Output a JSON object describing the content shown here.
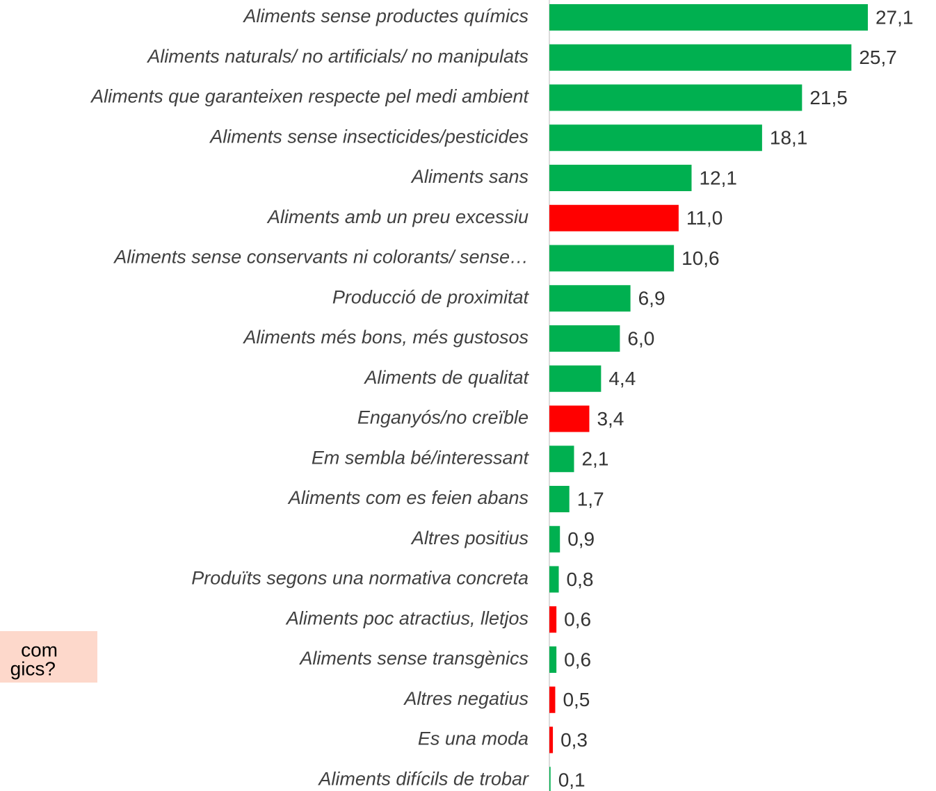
{
  "chart_data": {
    "type": "bar",
    "orientation": "horizontal",
    "categories": [
      "Aliments sense productes químics",
      "Aliments naturals/ no artificials/ no manipulats",
      "Aliments que garanteixen respecte pel medi ambient",
      "Aliments sense insecticides/pesticides",
      "Aliments sans",
      "Aliments amb un preu excessiu",
      "Aliments sense conservants ni colorants/ sense…",
      "Producció de proximitat",
      "Aliments més bons, més gustosos",
      "Aliments de qualitat",
      "Enganyós/no creïble",
      "Em sembla bé/interessant",
      "Aliments com es feien abans",
      "Altres positius",
      "Produïts segons una normativa concreta",
      "Aliments poc atractius, lletjos",
      "Aliments sense transgènics",
      "Altres negatius",
      "Es una moda",
      "Aliments difícils de trobar"
    ],
    "values": [
      27.1,
      25.7,
      21.5,
      18.1,
      12.1,
      11.0,
      10.6,
      6.9,
      6.0,
      4.4,
      3.4,
      2.1,
      1.7,
      0.9,
      0.8,
      0.6,
      0.6,
      0.5,
      0.3,
      0.1
    ],
    "value_labels": [
      "27,1",
      "25,7",
      "21,5",
      "18,1",
      "12,1",
      "11,0",
      "10,6",
      "6,9",
      "6,0",
      "4,4",
      "3,4",
      "2,1",
      "1,7",
      "0,9",
      "0,8",
      "0,6",
      "0,6",
      "0,5",
      "0,3",
      "0,1"
    ],
    "colors": [
      "#00b050",
      "#00b050",
      "#00b050",
      "#00b050",
      "#00b050",
      "#ff0000",
      "#00b050",
      "#00b050",
      "#00b050",
      "#00b050",
      "#ff0000",
      "#00b050",
      "#00b050",
      "#00b050",
      "#00b050",
      "#ff0000",
      "#00b050",
      "#ff0000",
      "#ff0000",
      "#00b050"
    ],
    "annotation_lines": [
      "com",
      "gics?"
    ]
  }
}
